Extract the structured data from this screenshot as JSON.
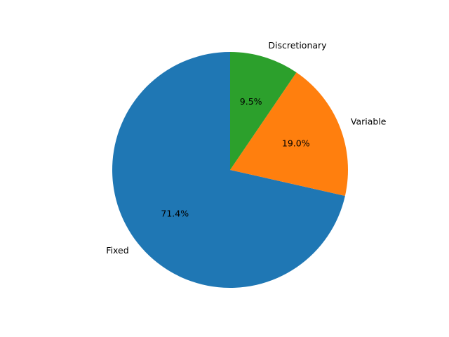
{
  "chart_data": {
    "type": "pie",
    "title": "",
    "start_angle_deg": 90,
    "direction": "counterclockwise",
    "slices": [
      {
        "label": "Fixed",
        "value": 71.4,
        "pct_label": "71.4%",
        "color": "#1f77b4"
      },
      {
        "label": "Variable",
        "value": 19.0,
        "pct_label": "19.0%",
        "color": "#ff7f0e"
      },
      {
        "label": "Discretionary",
        "value": 9.5,
        "pct_label": "9.5%",
        "color": "#2ca02c"
      }
    ]
  }
}
